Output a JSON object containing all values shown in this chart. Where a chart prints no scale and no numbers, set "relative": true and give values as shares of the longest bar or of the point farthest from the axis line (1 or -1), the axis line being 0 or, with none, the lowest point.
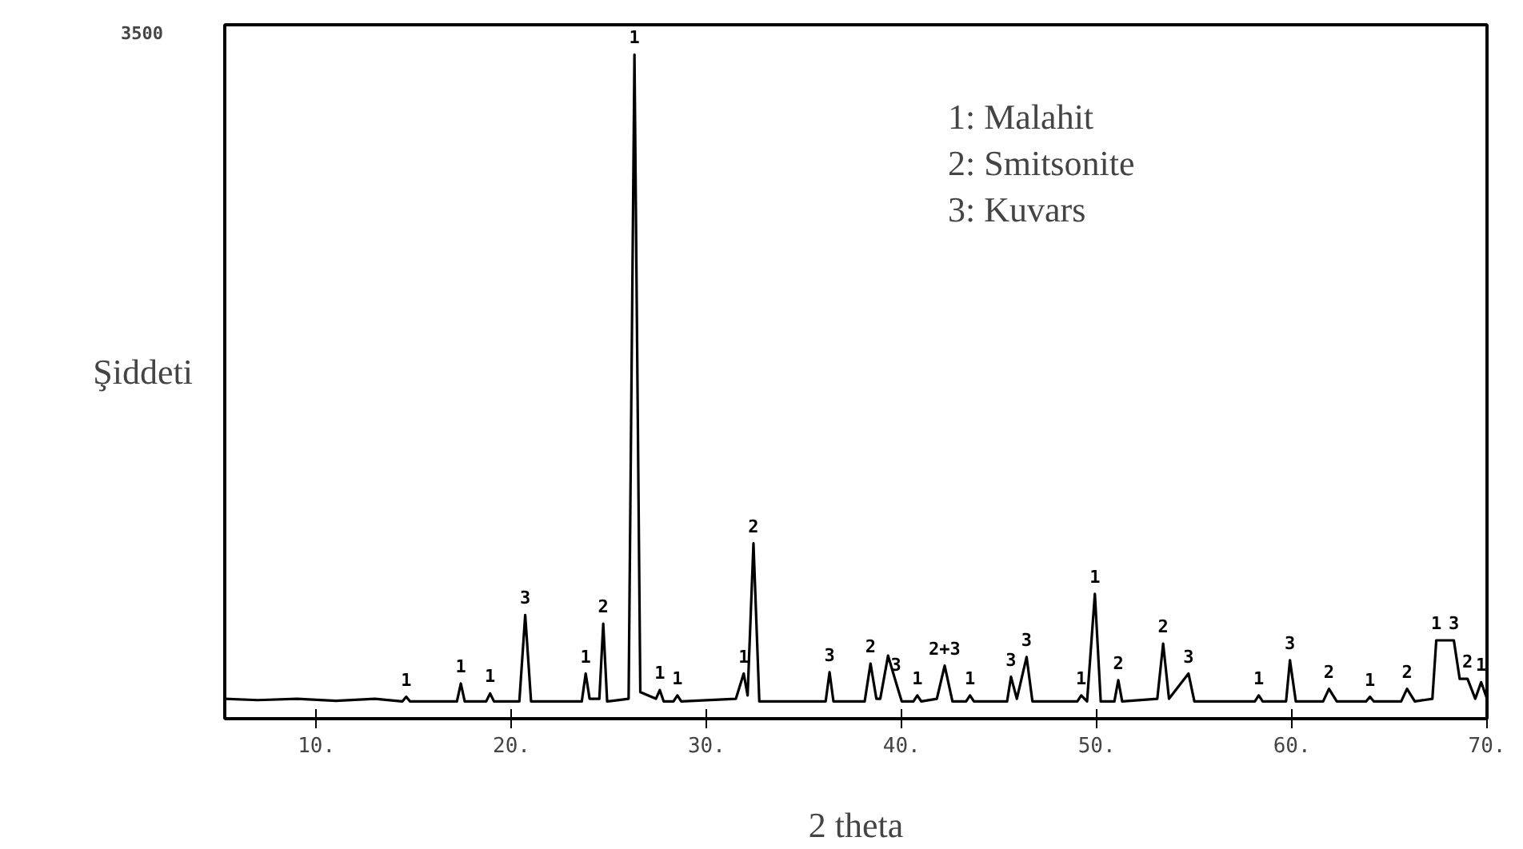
{
  "chart_data": {
    "type": "line",
    "relative": true,
    "xlabel": "2 theta",
    "ylabel": "Şiddeti",
    "xlim": [
      5.3,
      70
    ],
    "xticks": [
      {
        "value": 10,
        "label": "10."
      },
      {
        "value": 20,
        "label": "20."
      },
      {
        "value": 30,
        "label": "30."
      },
      {
        "value": 40,
        "label": "40."
      },
      {
        "value": 50,
        "label": "50."
      },
      {
        "value": 60,
        "label": "60."
      },
      {
        "value": 70,
        "label": "70."
      }
    ],
    "grid": false,
    "line_style": "solid",
    "series": [
      {
        "color": "#000000",
        "x": [
          5.3,
          7,
          9,
          11,
          13,
          14.4,
          14.6,
          14.8,
          17.2,
          17.4,
          17.6,
          18.7,
          18.9,
          19.1,
          20.4,
          20.7,
          21.0,
          23.6,
          23.8,
          24.0,
          24.5,
          24.7,
          24.9,
          26.0,
          26.3,
          26.6,
          27.4,
          27.6,
          27.8,
          28.3,
          28.5,
          28.7,
          31.5,
          31.9,
          32.1,
          32.4,
          32.7,
          36.1,
          36.3,
          36.5,
          38.1,
          38.4,
          38.7,
          38.9,
          39.3,
          39.7,
          40.0,
          40.6,
          40.8,
          41.0,
          41.8,
          42.2,
          42.6,
          43.3,
          43.5,
          43.7,
          45.4,
          45.6,
          45.9,
          46.4,
          46.7,
          49.0,
          49.2,
          49.5,
          49.9,
          50.2,
          50.9,
          51.1,
          51.3,
          53.1,
          53.4,
          53.7,
          54.7,
          55.0,
          58.1,
          58.3,
          58.5,
          59.7,
          59.9,
          60.2,
          61.6,
          61.9,
          62.3,
          63.8,
          64.0,
          64.2,
          65.6,
          65.9,
          66.3,
          67.2,
          67.4,
          68.3,
          68.6,
          69.0,
          69.4,
          69.7,
          70
        ],
        "values": [
          0.03,
          0.028,
          0.03,
          0.027,
          0.03,
          0.026,
          0.033,
          0.026,
          0.026,
          0.053,
          0.026,
          0.026,
          0.038,
          0.026,
          0.026,
          0.156,
          0.026,
          0.026,
          0.068,
          0.03,
          0.03,
          0.143,
          0.026,
          0.03,
          1.0,
          0.04,
          0.03,
          0.043,
          0.026,
          0.026,
          0.035,
          0.026,
          0.03,
          0.068,
          0.035,
          0.264,
          0.026,
          0.026,
          0.07,
          0.026,
          0.026,
          0.083,
          0.03,
          0.03,
          0.095,
          0.055,
          0.026,
          0.026,
          0.035,
          0.026,
          0.03,
          0.08,
          0.026,
          0.026,
          0.035,
          0.026,
          0.026,
          0.063,
          0.03,
          0.093,
          0.026,
          0.026,
          0.035,
          0.026,
          0.188,
          0.026,
          0.026,
          0.058,
          0.026,
          0.03,
          0.113,
          0.03,
          0.068,
          0.026,
          0.026,
          0.035,
          0.026,
          0.026,
          0.088,
          0.026,
          0.026,
          0.045,
          0.026,
          0.026,
          0.033,
          0.026,
          0.026,
          0.045,
          0.026,
          0.03,
          0.118,
          0.118,
          0.06,
          0.06,
          0.03,
          0.055,
          0.03
        ]
      }
    ],
    "annotations": [
      "3500",
      "1: Malahit",
      "2: Smitsonite",
      "3: Kuvars",
      {
        "text": "1",
        "x": 14.6,
        "y": 0.033
      },
      {
        "text": "1",
        "x": 17.4,
        "y": 0.053
      },
      {
        "text": "1",
        "x": 18.9,
        "y": 0.038
      },
      {
        "text": "3",
        "x": 20.7,
        "y": 0.156
      },
      {
        "text": "1",
        "x": 23.8,
        "y": 0.068
      },
      {
        "text": "2",
        "x": 24.7,
        "y": 0.143
      },
      {
        "text": "1",
        "x": 26.3,
        "y": 1.0
      },
      {
        "text": "1",
        "x": 27.6,
        "y": 0.043
      },
      {
        "text": "1",
        "x": 28.5,
        "y": 0.035
      },
      {
        "text": "1",
        "x": 31.9,
        "y": 0.068
      },
      {
        "text": "2",
        "x": 32.4,
        "y": 0.264
      },
      {
        "text": "3",
        "x": 36.3,
        "y": 0.07
      },
      {
        "text": "2",
        "x": 38.4,
        "y": 0.083
      },
      {
        "text": "3",
        "x": 39.7,
        "y": 0.055
      },
      {
        "text": "1",
        "x": 40.8,
        "y": 0.035
      },
      {
        "text": "2+3",
        "x": 42.2,
        "y": 0.08
      },
      {
        "text": "1",
        "x": 43.5,
        "y": 0.035
      },
      {
        "text": "3",
        "x": 45.6,
        "y": 0.063
      },
      {
        "text": "3",
        "x": 46.4,
        "y": 0.093
      },
      {
        "text": "1",
        "x": 49.2,
        "y": 0.035
      },
      {
        "text": "1",
        "x": 49.9,
        "y": 0.188
      },
      {
        "text": "2",
        "x": 51.1,
        "y": 0.058
      },
      {
        "text": "2",
        "x": 53.4,
        "y": 0.113
      },
      {
        "text": "3",
        "x": 54.7,
        "y": 0.068
      },
      {
        "text": "1",
        "x": 58.3,
        "y": 0.035
      },
      {
        "text": "3",
        "x": 59.9,
        "y": 0.088
      },
      {
        "text": "2",
        "x": 61.9,
        "y": 0.045
      },
      {
        "text": "1",
        "x": 64.0,
        "y": 0.033
      },
      {
        "text": "2",
        "x": 65.9,
        "y": 0.045
      },
      {
        "text": "1",
        "x": 67.4,
        "y": 0.118
      },
      {
        "text": "3",
        "x": 68.3,
        "y": 0.118
      },
      {
        "text": "2",
        "x": 69.0,
        "y": 0.06
      },
      {
        "text": "1",
        "x": 69.7,
        "y": 0.055
      }
    ]
  }
}
